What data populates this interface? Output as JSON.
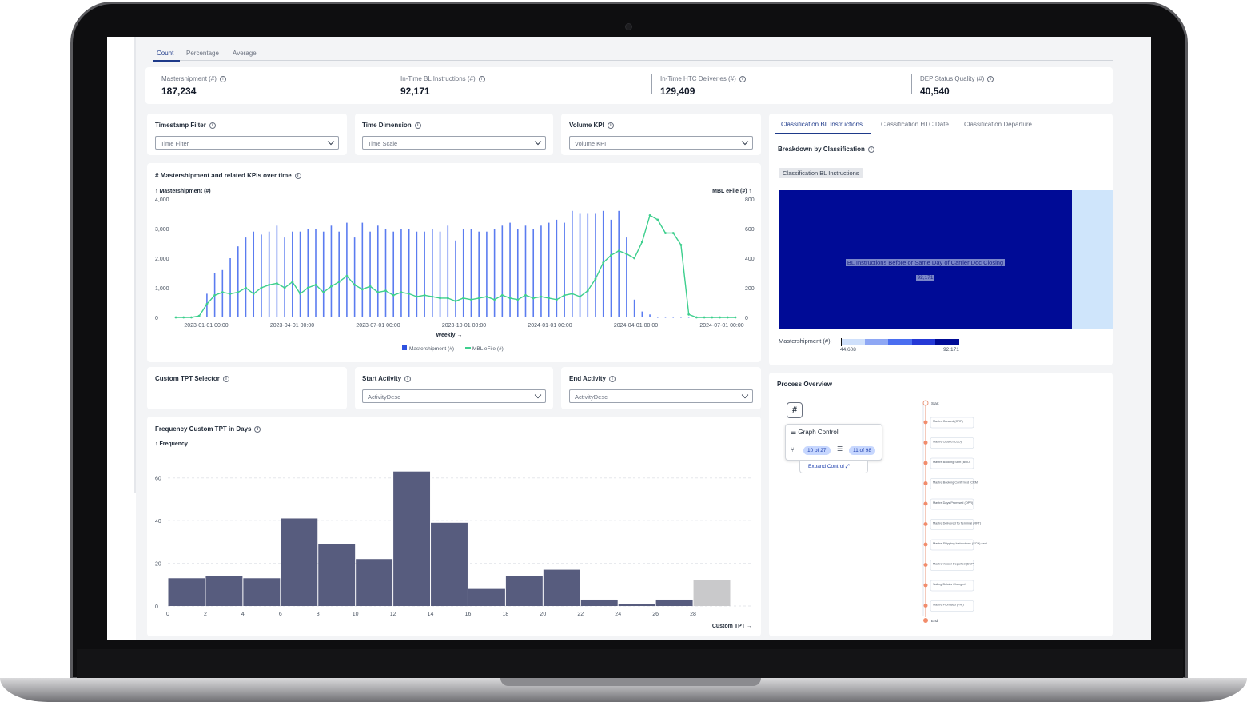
{
  "tabs": [
    "Count",
    "Percentage",
    "Average"
  ],
  "kpis": [
    {
      "label": "Mastershipment (#)",
      "value": "187,234"
    },
    {
      "label": "In-Time BL Instructions (#)",
      "value": "92,171"
    },
    {
      "label": "In-Time HTC Deliveries (#)",
      "value": "129,409"
    },
    {
      "label": "DEP Status Quality (#)",
      "value": "40,540"
    }
  ],
  "filters": [
    {
      "label": "Timestamp Filter",
      "placeholder": "Time Filter"
    },
    {
      "label": "Time Dimension",
      "placeholder": "Time Scale"
    },
    {
      "label": "Volume KPI",
      "placeholder": "Volume KPI"
    }
  ],
  "tpt_filters": {
    "custom_label": "Custom TPT Selector",
    "start_label": "Start Activity",
    "start_placeholder": "ActivityDesc",
    "end_label": "End Activity",
    "end_placeholder": "ActivityDesc"
  },
  "colors": {
    "bar_blue": "#5b7cf0",
    "line_green": "#3ecf8e",
    "histogram": "#575c7e",
    "histogram_last": "#c9c9cb",
    "treemap_main": "#000b96",
    "treemap_side": "#cfe5fb"
  },
  "chart_data": [
    {
      "type": "bar",
      "title": "# Mastershipment and related KPIs over time",
      "ylabel": "↑ Mastershipment (#)",
      "ylabel_right": "MBL eFile (#) ↑",
      "xlabel": "Weekly →",
      "y_ticks": [
        "4,000",
        "3,000",
        "2,000",
        "1,000",
        "0"
      ],
      "y_right_ticks": [
        "800",
        "600",
        "400",
        "200",
        "0"
      ],
      "x_ticks": [
        "2023-01-01 00:00",
        "2023-04-01 00:00",
        "2023-07-01 00:00",
        "2023-10-01 00:00",
        "2024-01-01 00:00",
        "2024-04-01 00:00",
        "2024-07-01 00:00"
      ],
      "ylim": [
        0,
        4000
      ],
      "y2lim": [
        0,
        800
      ],
      "legend": [
        "Mastershipment (#)",
        "MBL eFile (#)"
      ],
      "series": [
        {
          "name": "Mastershipment (#)",
          "values": [
            0,
            0,
            0,
            50,
            800,
            1500,
            1600,
            2000,
            2400,
            2700,
            2900,
            2800,
            2900,
            3100,
            2700,
            2900,
            2900,
            3000,
            3000,
            2900,
            3100,
            2900,
            3200,
            2700,
            3200,
            2900,
            3100,
            3000,
            2900,
            3000,
            3000,
            2900,
            2900,
            3000,
            2900,
            3100,
            2600,
            3000,
            3000,
            2900,
            2900,
            3000,
            3100,
            3200,
            3000,
            3100,
            3000,
            3100,
            3200,
            3300,
            3200,
            3600,
            3500,
            3500,
            3500,
            3600,
            3300,
            3600,
            2700,
            600,
            200,
            100,
            0,
            0,
            0,
            0,
            0,
            0,
            0,
            0,
            0,
            0,
            0
          ]
        },
        {
          "name": "MBL eFile (#)",
          "values": [
            0,
            0,
            0,
            10,
            90,
            150,
            170,
            160,
            170,
            200,
            160,
            200,
            220,
            230,
            200,
            240,
            160,
            200,
            220,
            170,
            210,
            240,
            280,
            220,
            190,
            210,
            170,
            180,
            150,
            170,
            160,
            140,
            150,
            140,
            130,
            130,
            110,
            130,
            120,
            130,
            140,
            120,
            150,
            130,
            120,
            150,
            130,
            140,
            130,
            120,
            150,
            160,
            140,
            180,
            260,
            370,
            420,
            450,
            430,
            400,
            510,
            690,
            660,
            570,
            570,
            490,
            20,
            0,
            0,
            0,
            0,
            0,
            0
          ]
        }
      ]
    },
    {
      "type": "bar",
      "title": "Frequency Custom TPT in Days",
      "ylabel": "↑ Frequency",
      "xlabel": "Custom TPT →",
      "categories": [
        0,
        2,
        4,
        6,
        8,
        10,
        12,
        14,
        16,
        18,
        20,
        22,
        24,
        26,
        28
      ],
      "values": [
        13,
        14,
        13,
        41,
        29,
        22,
        63,
        39,
        8,
        14,
        17,
        3,
        1,
        3,
        12
      ],
      "y_ticks": [
        "60",
        "40",
        "20",
        "0"
      ],
      "ylim": [
        0,
        70
      ]
    },
    {
      "type": "heatmap",
      "title": "Breakdown by Classification",
      "label": "Classification BL Instructions",
      "cells": [
        {
          "name": "BL Instructions Before or Same Day of Carrier Doc Closing",
          "value": "92,171"
        }
      ],
      "color_legend_label": "Mastershipment (#):",
      "color_min": "44,608",
      "color_max": "92,171"
    }
  ],
  "classification_tabs": [
    "Classification BL Instructions",
    "Classification HTC Date",
    "Classification Departure"
  ],
  "process": {
    "title": "Process Overview",
    "graph_control": "Graph Control",
    "pill_a": "10 of 27",
    "pill_b": "11 of 98",
    "expand": "Expand Control",
    "hash": "#",
    "start": "Start",
    "end": "End",
    "nodes": [
      "Mastre Created (CRP)",
      "Mastre Closed (CLO)",
      "Mastre Booking Sent (BOO)",
      "Mastre Booking Confirmed (CRM)",
      "Mastre Days Promised (OPR)",
      "Mastre Delivered To Terminal (RPT)",
      "Mastre Shipping Instructions (SCH) sent",
      "Mastre Vessel Departed (DEP)",
      "Sailing Details Changed",
      "Mastre Promised (PRI)"
    ]
  }
}
